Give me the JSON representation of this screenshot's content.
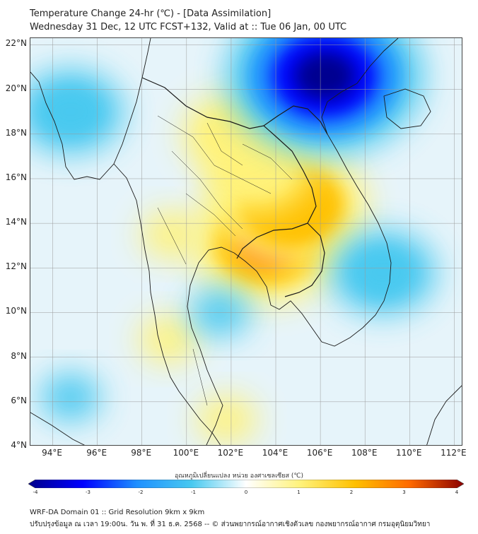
{
  "header": {
    "title": "Temperature Change 24-hr (℃) - [Data Assimilation]",
    "subtitle": "Wednesday 31 Dec, 12 UTC FCST+132, Valid at :: Tue 06 Jan, 00 UTC"
  },
  "map": {
    "lat_labels": [
      "22°N",
      "20°N",
      "18°N",
      "16°N",
      "14°N",
      "12°N",
      "10°N",
      "8°N",
      "6°N",
      "4°N"
    ],
    "lon_labels": [
      "94°E",
      "96°E",
      "98°E",
      "100°E",
      "102°E",
      "104°E",
      "106°E",
      "108°E",
      "110°E",
      "112°E"
    ],
    "lat_range": [
      4,
      22.3
    ],
    "lon_range": [
      93,
      112.4
    ],
    "background_color": "#e6f4fa",
    "features": [
      {
        "name": "warm-center-cambodia",
        "lon": 103.6,
        "lat": 13.1,
        "value": 2.9
      },
      {
        "name": "warm-center-thai-laos",
        "lon": 104.7,
        "lat": 14.8,
        "value": 2.4
      },
      {
        "name": "warm-northeast",
        "lon": 103.2,
        "lat": 16.4,
        "value": 1.4
      },
      {
        "name": "warm-north-thai",
        "lon": 102.2,
        "lat": 18.0,
        "value": 1.3
      },
      {
        "name": "warm-western-band",
        "lon": 99.3,
        "lat": 13.5,
        "value": 1.0
      },
      {
        "name": "warm-peninsula",
        "lon": 99.2,
        "lat": 8.8,
        "value": 1.0
      },
      {
        "name": "warm-south-sea",
        "lon": 101.8,
        "lat": 5.2,
        "value": 0.9
      },
      {
        "name": "cold-gulf-tonkin",
        "lon": 106.2,
        "lat": 20.6,
        "value": -3.6
      },
      {
        "name": "cold-northwest",
        "lon": 94.8,
        "lat": 19.0,
        "value": -1.3
      },
      {
        "name": "cold-east-sea",
        "lon": 108.8,
        "lat": 11.8,
        "value": -1.2
      },
      {
        "name": "cold-south-west",
        "lon": 94.8,
        "lat": 6.2,
        "value": -1.0
      },
      {
        "name": "cold-gulf-thailand",
        "lon": 101.5,
        "lat": 10.0,
        "value": -0.8
      }
    ]
  },
  "colorbar": {
    "title": "อุณหภูมิเปลี่ยนแปลง หน่วย องศาเซลเซียส (℃)",
    "ticks": [
      "-4",
      "-3",
      "-2",
      "-1",
      "0",
      "1",
      "2",
      "3",
      "4"
    ],
    "range": [
      -4,
      4
    ],
    "colors": [
      "#00008b",
      "#0000ff",
      "#1e90ff",
      "#48c9f0",
      "#ffffff",
      "#fff27a",
      "#ffc000",
      "#ff6a00",
      "#8b0000"
    ]
  },
  "footer": {
    "line1": "WRF-DA Domain 01 :: Grid Resolution 9km x 9km",
    "line2": "ปรับปรุงข้อมูล ณ เวลา 19:00น. วัน พ. ที่ 31 ธ.ค. 2568 -- © ส่วนพยากรณ์อากาศเชิงตัวเลข กองพยากรณ์อากาศ กรมอุตุนิยมวิทยา"
  }
}
